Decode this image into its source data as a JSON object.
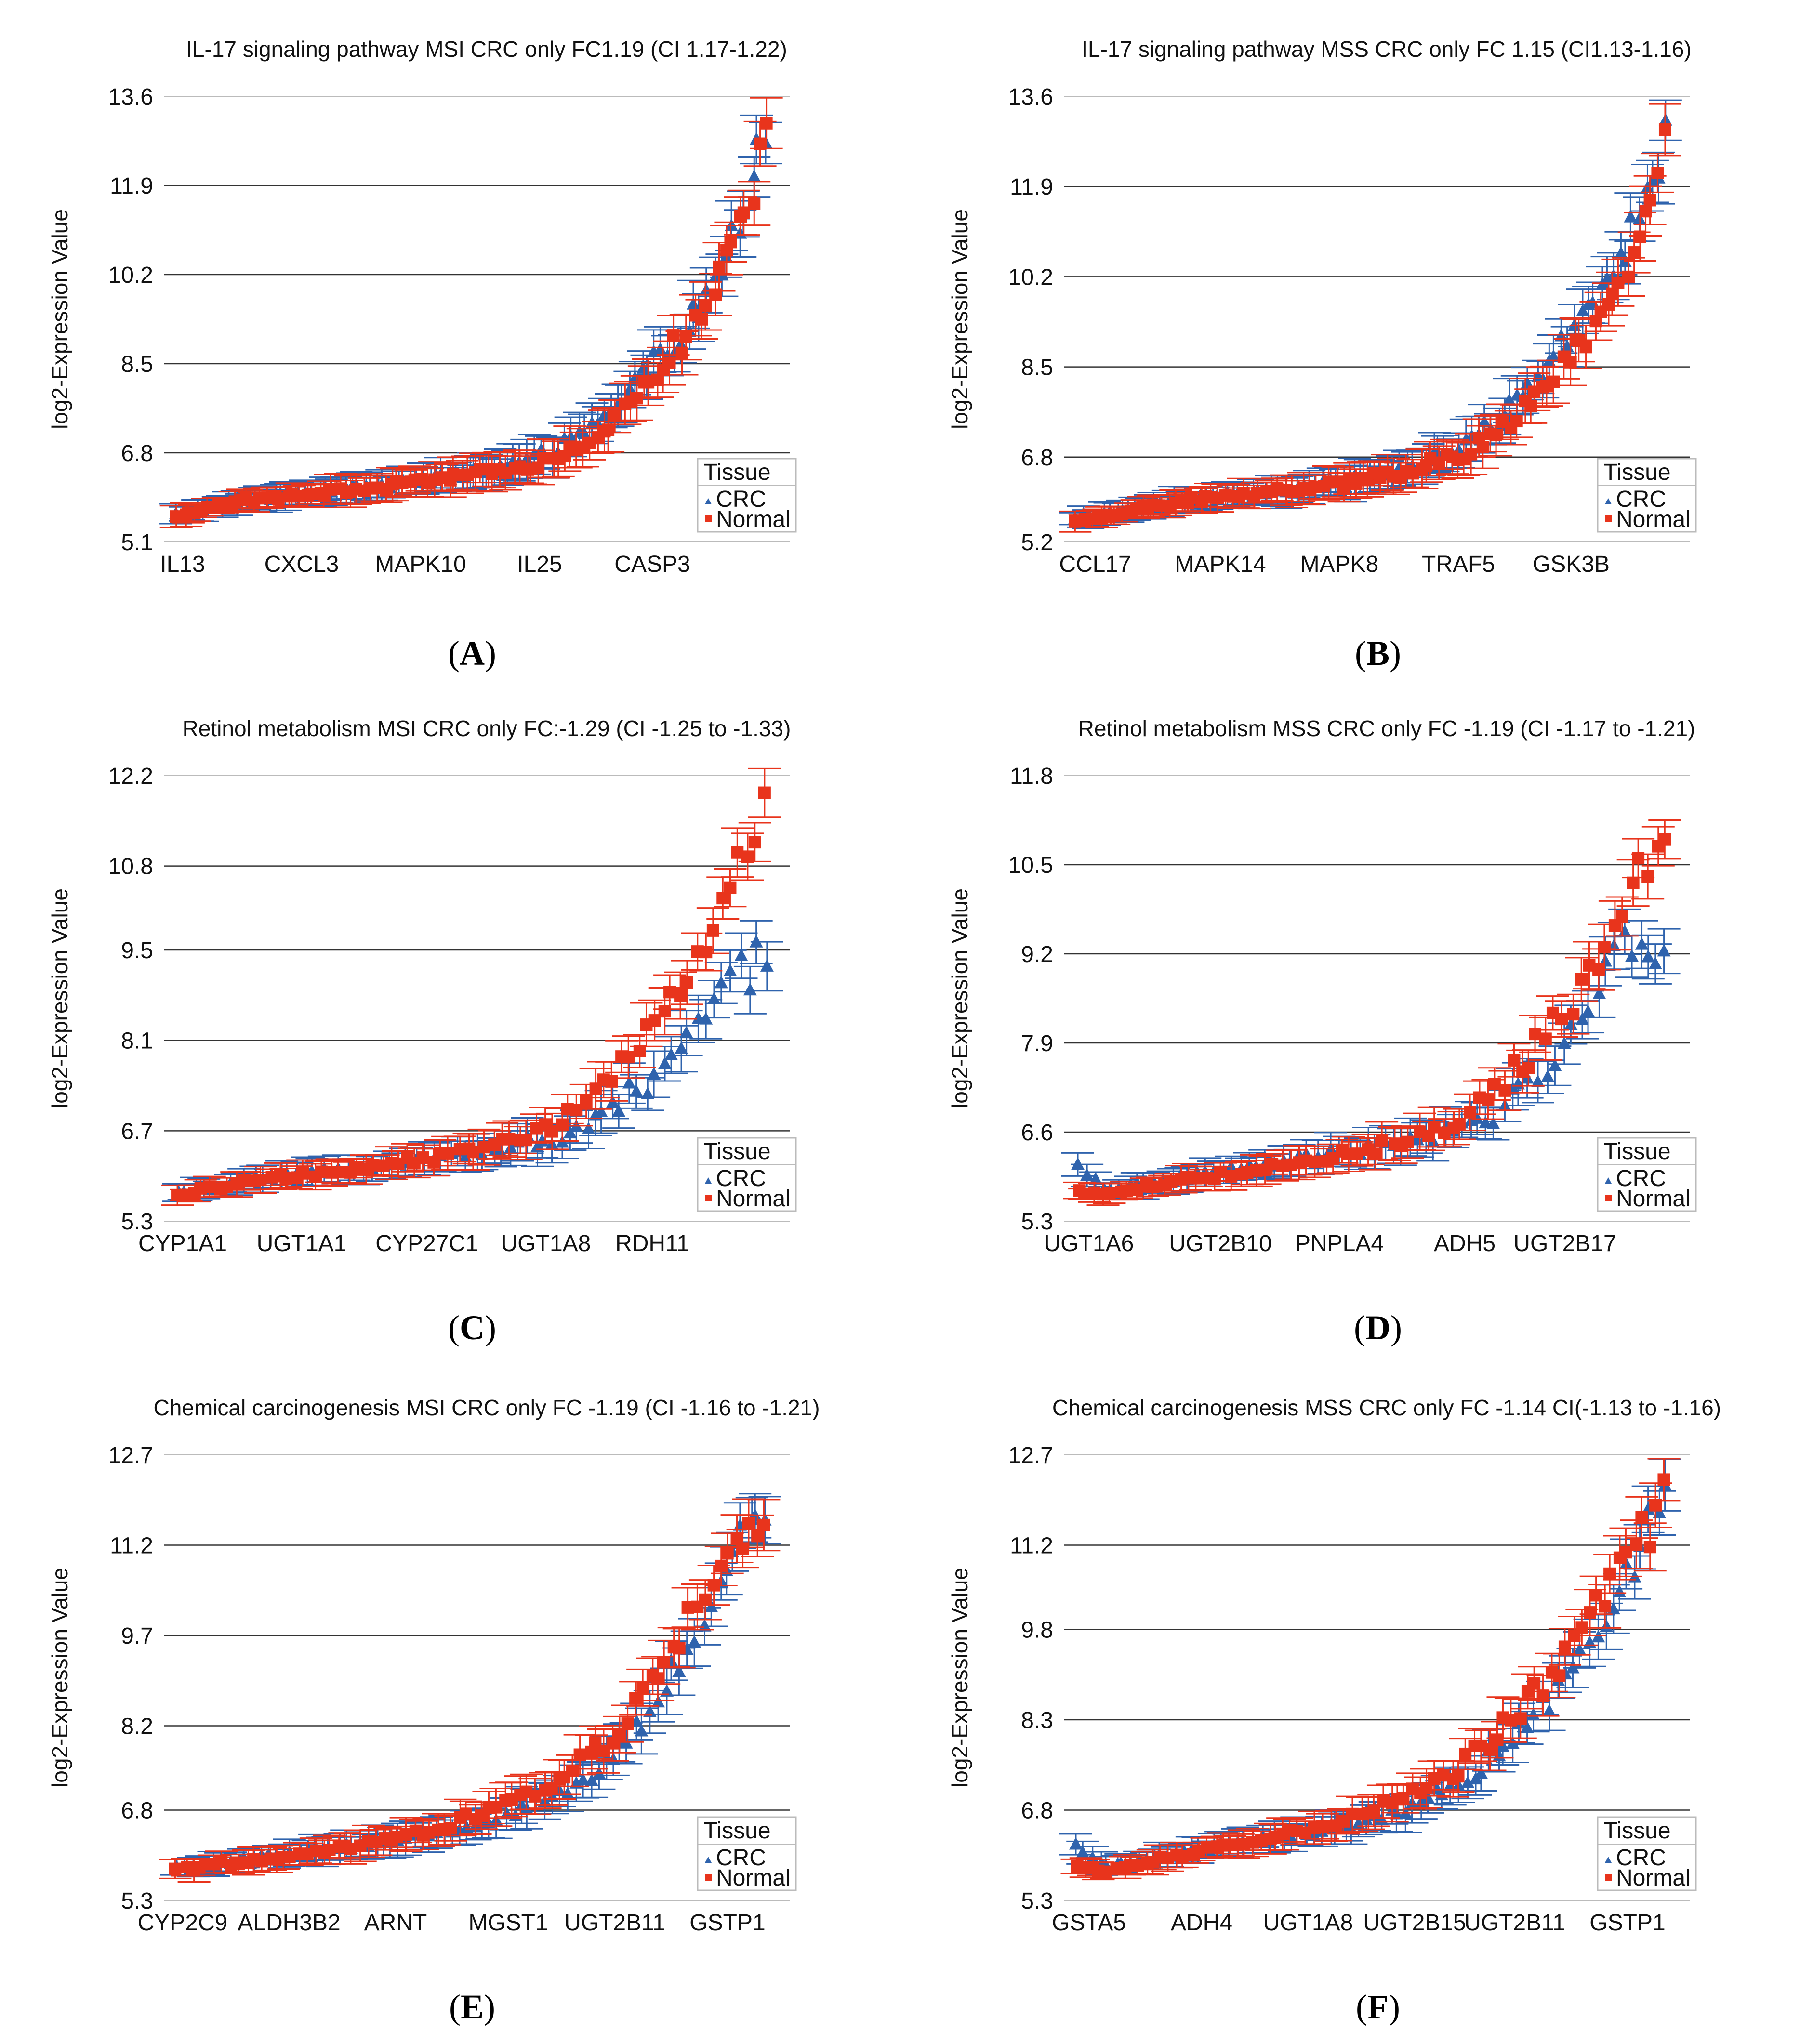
{
  "colors": {
    "crc": "#2f63ad",
    "normal": "#e8341c",
    "grid": "#333333",
    "axis": "#bbbbbb"
  },
  "common": {
    "ylabel": "log2-Expression Value",
    "legend": {
      "title": "Tissue",
      "crc": "CRC",
      "normal": "Normal"
    }
  },
  "chart_data": [
    {
      "type": "scatter",
      "panel_label": "A",
      "title": "IL-17 signaling pathway MSI CRC only FC1.19 (CI 1.17-1.22)",
      "ylabel": "log2-Expression Value",
      "yticks": [
        5.1,
        6.8,
        8.5,
        10.2,
        11.9,
        13.6
      ],
      "ylim": [
        5.1,
        13.6
      ],
      "xtick_labels": [
        "IL13",
        "CXCL3",
        "MAPK10",
        "IL25",
        "CASP3"
      ],
      "xtick_positions": [
        0.03,
        0.22,
        0.41,
        0.6,
        0.78
      ],
      "legend": [
        "CRC",
        "Normal"
      ],
      "n_genes": 92,
      "series": [
        {
          "name": "Normal",
          "anchors": [
            [
              0,
              5.6
            ],
            [
              0.1,
              5.85
            ],
            [
              0.2,
              6.0
            ],
            [
              0.35,
              6.15
            ],
            [
              0.45,
              6.3
            ],
            [
              0.55,
              6.45
            ],
            [
              0.62,
              6.6
            ],
            [
              0.68,
              6.9
            ],
            [
              0.75,
              7.5
            ],
            [
              0.82,
              8.4
            ],
            [
              0.88,
              9.3
            ],
            [
              0.93,
              10.3
            ],
            [
              0.97,
              11.5
            ],
            [
              1.0,
              12.8
            ]
          ]
        },
        {
          "name": "CRC",
          "anchors": [
            [
              0,
              5.62
            ],
            [
              0.1,
              5.87
            ],
            [
              0.2,
              6.02
            ],
            [
              0.35,
              6.18
            ],
            [
              0.45,
              6.33
            ],
            [
              0.55,
              6.5
            ],
            [
              0.62,
              6.75
            ],
            [
              0.68,
              7.05
            ],
            [
              0.75,
              7.7
            ],
            [
              0.82,
              8.6
            ],
            [
              0.88,
              9.4
            ],
            [
              0.93,
              10.4
            ],
            [
              0.97,
              11.6
            ],
            [
              1.0,
              12.9
            ]
          ]
        }
      ]
    },
    {
      "type": "scatter",
      "panel_label": "B",
      "title": "IL-17 signaling pathway MSS CRC only FC 1.15 (CI1.13-1.16)",
      "ylabel": "log2-Expression Value",
      "yticks": [
        5.2,
        6.8,
        8.5,
        10.2,
        11.9,
        13.6
      ],
      "ylim": [
        5.2,
        13.6
      ],
      "xtick_labels": [
        "CCL17",
        "MAPK14",
        "MAPK8",
        "TRAF5",
        "GSK3B"
      ],
      "xtick_positions": [
        0.05,
        0.25,
        0.44,
        0.63,
        0.81
      ],
      "legend": [
        "CRC",
        "Normal"
      ],
      "n_genes": 92,
      "series": [
        {
          "name": "Normal",
          "anchors": [
            [
              0,
              5.6
            ],
            [
              0.1,
              5.8
            ],
            [
              0.2,
              6.0
            ],
            [
              0.35,
              6.15
            ],
            [
              0.45,
              6.3
            ],
            [
              0.55,
              6.5
            ],
            [
              0.62,
              6.7
            ],
            [
              0.68,
              7.0
            ],
            [
              0.75,
              7.6
            ],
            [
              0.82,
              8.5
            ],
            [
              0.88,
              9.3
            ],
            [
              0.93,
              10.4
            ],
            [
              0.97,
              11.5
            ],
            [
              1.0,
              12.9
            ]
          ]
        },
        {
          "name": "CRC",
          "anchors": [
            [
              0,
              5.62
            ],
            [
              0.1,
              5.82
            ],
            [
              0.2,
              6.02
            ],
            [
              0.35,
              6.18
            ],
            [
              0.45,
              6.33
            ],
            [
              0.55,
              6.55
            ],
            [
              0.62,
              6.85
            ],
            [
              0.68,
              7.2
            ],
            [
              0.75,
              7.9
            ],
            [
              0.82,
              8.8
            ],
            [
              0.88,
              9.6
            ],
            [
              0.93,
              10.6
            ],
            [
              0.97,
              11.7
            ],
            [
              1.0,
              12.8
            ]
          ]
        }
      ]
    },
    {
      "type": "scatter",
      "panel_label": "C",
      "title": "Retinol metabolism MSI CRC only FC:-1.29 (CI -1.25 to -1.33)",
      "ylabel": "log2-Expression Value",
      "yticks": [
        5.3,
        6.7,
        8.1,
        9.5,
        10.8,
        12.2
      ],
      "ylim": [
        5.3,
        12.2
      ],
      "xtick_labels": [
        "CYP1A1",
        "UGT1A1",
        "CYP27C1",
        "UGT1A8",
        "RDH11"
      ],
      "xtick_positions": [
        0.03,
        0.22,
        0.42,
        0.61,
        0.78
      ],
      "legend": [
        "CRC",
        "Normal"
      ],
      "n_genes": 70,
      "series": [
        {
          "name": "Normal",
          "anchors": [
            [
              0,
              5.7
            ],
            [
              0.15,
              5.95
            ],
            [
              0.3,
              6.1
            ],
            [
              0.45,
              6.3
            ],
            [
              0.55,
              6.5
            ],
            [
              0.65,
              6.8
            ],
            [
              0.72,
              7.3
            ],
            [
              0.8,
              8.2
            ],
            [
              0.87,
              9.2
            ],
            [
              0.93,
              10.2
            ],
            [
              1.0,
              11.7
            ]
          ]
        },
        {
          "name": "CRC",
          "anchors": [
            [
              0,
              5.72
            ],
            [
              0.15,
              5.97
            ],
            [
              0.3,
              6.12
            ],
            [
              0.45,
              6.3
            ],
            [
              0.55,
              6.45
            ],
            [
              0.65,
              6.6
            ],
            [
              0.72,
              6.9
            ],
            [
              0.8,
              7.5
            ],
            [
              0.87,
              8.3
            ],
            [
              0.93,
              9.0
            ],
            [
              1.0,
              9.4
            ]
          ]
        }
      ]
    },
    {
      "type": "scatter",
      "panel_label": "D",
      "title": "Retinol metabolism MSS CRC only FC -1.19 (CI -1.17 to -1.21)",
      "ylabel": "log2-Expression Value",
      "yticks": [
        5.3,
        6.6,
        7.9,
        9.2,
        10.5,
        11.8
      ],
      "ylim": [
        5.3,
        11.8
      ],
      "xtick_labels": [
        "UGT1A6",
        "UGT2B10",
        "PNPLA4",
        "ADH5",
        "UGT2B17"
      ],
      "xtick_positions": [
        0.04,
        0.25,
        0.44,
        0.64,
        0.8
      ],
      "legend": [
        "CRC",
        "Normal"
      ],
      "n_genes": 70,
      "series": [
        {
          "name": "Normal",
          "anchors": [
            [
              0,
              5.75
            ],
            [
              0.05,
              5.7
            ],
            [
              0.15,
              5.85
            ],
            [
              0.3,
              6.05
            ],
            [
              0.45,
              6.25
            ],
            [
              0.55,
              6.45
            ],
            [
              0.65,
              6.8
            ],
            [
              0.72,
              7.3
            ],
            [
              0.8,
              8.0
            ],
            [
              0.87,
              8.9
            ],
            [
              0.93,
              9.8
            ],
            [
              1.0,
              11.1
            ]
          ]
        },
        {
          "name": "CRC",
          "anchors": [
            [
              0,
              6.1
            ],
            [
              0.05,
              5.75
            ],
            [
              0.15,
              5.9
            ],
            [
              0.3,
              6.1
            ],
            [
              0.45,
              6.3
            ],
            [
              0.55,
              6.45
            ],
            [
              0.65,
              6.6
            ],
            [
              0.72,
              6.9
            ],
            [
              0.8,
              7.6
            ],
            [
              0.87,
              8.6
            ],
            [
              0.93,
              9.3
            ],
            [
              1.0,
              9.4
            ]
          ]
        }
      ]
    },
    {
      "type": "scatter",
      "panel_label": "E",
      "title": "Chemical carcinogenesis MSI CRC only FC -1.19 (CI -1.16 to -1.21)",
      "ylabel": "log2-Expression Value",
      "yticks": [
        5.3,
        6.8,
        8.2,
        9.7,
        11.2,
        12.7
      ],
      "ylim": [
        5.3,
        12.7
      ],
      "xtick_labels": [
        "CYP2C9",
        "ALDH3B2",
        "ARNT",
        "MGST1",
        "UGT2B11",
        "GSTP1"
      ],
      "xtick_positions": [
        0.03,
        0.2,
        0.37,
        0.55,
        0.72,
        0.9
      ],
      "legend": [
        "CRC",
        "Normal"
      ],
      "n_genes": 78,
      "series": [
        {
          "name": "Normal",
          "anchors": [
            [
              0,
              5.8
            ],
            [
              0.15,
              6.0
            ],
            [
              0.3,
              6.2
            ],
            [
              0.45,
              6.5
            ],
            [
              0.55,
              6.9
            ],
            [
              0.65,
              7.3
            ],
            [
              0.73,
              7.9
            ],
            [
              0.8,
              8.9
            ],
            [
              0.87,
              9.9
            ],
            [
              0.93,
              10.9
            ],
            [
              1.0,
              11.9
            ]
          ]
        },
        {
          "name": "CRC",
          "anchors": [
            [
              0,
              5.82
            ],
            [
              0.15,
              6.02
            ],
            [
              0.3,
              6.2
            ],
            [
              0.45,
              6.4
            ],
            [
              0.55,
              6.7
            ],
            [
              0.65,
              7.1
            ],
            [
              0.73,
              7.6
            ],
            [
              0.8,
              8.4
            ],
            [
              0.87,
              9.5
            ],
            [
              0.93,
              10.6
            ],
            [
              1.0,
              12.0
            ]
          ]
        }
      ]
    },
    {
      "type": "scatter",
      "panel_label": "F",
      "title": "Chemical carcinogenesis MSS CRC only FC -1.14 CI(-1.13 to -1.16)",
      "ylabel": "log2-Expression Value",
      "yticks": [
        5.3,
        6.8,
        8.3,
        9.8,
        11.2,
        12.7
      ],
      "ylim": [
        5.3,
        12.7
      ],
      "xtick_labels": [
        "GSTA5",
        "ADH4",
        "UGT1A8",
        "UGT2B15",
        "UGT2B11",
        "GSTP1"
      ],
      "xtick_positions": [
        0.04,
        0.22,
        0.39,
        0.56,
        0.72,
        0.9
      ],
      "legend": [
        "CRC",
        "Normal"
      ],
      "n_genes": 78,
      "series": [
        {
          "name": "Normal",
          "anchors": [
            [
              0,
              5.85
            ],
            [
              0.05,
              5.8
            ],
            [
              0.15,
              6.0
            ],
            [
              0.3,
              6.3
            ],
            [
              0.45,
              6.6
            ],
            [
              0.55,
              7.0
            ],
            [
              0.65,
              7.5
            ],
            [
              0.73,
              8.2
            ],
            [
              0.8,
              9.0
            ],
            [
              0.87,
              9.9
            ],
            [
              0.93,
              10.9
            ],
            [
              1.0,
              11.9
            ]
          ]
        },
        {
          "name": "CRC",
          "anchors": [
            [
              0,
              6.2
            ],
            [
              0.05,
              5.85
            ],
            [
              0.15,
              6.05
            ],
            [
              0.3,
              6.3
            ],
            [
              0.45,
              6.5
            ],
            [
              0.55,
              6.8
            ],
            [
              0.65,
              7.2
            ],
            [
              0.73,
              7.9
            ],
            [
              0.8,
              8.6
            ],
            [
              0.87,
              9.5
            ],
            [
              0.93,
              10.6
            ],
            [
              1.0,
              12.0
            ]
          ]
        }
      ]
    }
  ]
}
